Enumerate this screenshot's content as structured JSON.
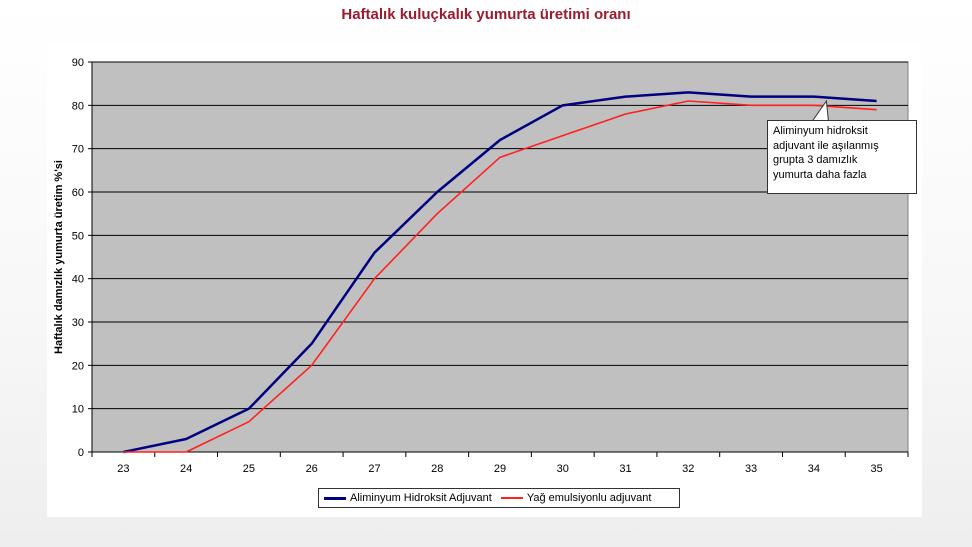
{
  "chart_data": {
    "type": "line",
    "title": "Haftalık kuluçkalık yumurta üretimi oranı",
    "xlabel": "",
    "ylabel": "Haftalık damızlık yumurta üretim %'si",
    "x": [
      23,
      24,
      25,
      26,
      27,
      28,
      29,
      30,
      31,
      32,
      33,
      34,
      35
    ],
    "xlim": [
      22.5,
      35.5
    ],
    "ylim": [
      0,
      90
    ],
    "yticks": [
      0,
      10,
      20,
      30,
      40,
      50,
      60,
      70,
      80,
      90
    ],
    "grid": true,
    "legend_position": "bottom",
    "series": [
      {
        "name": "Aliminyum Hidroksit Adjuvant",
        "color": "#000080",
        "values": [
          0,
          3,
          10,
          25,
          46,
          60,
          72,
          80,
          82,
          83,
          82,
          82,
          81
        ]
      },
      {
        "name": "Yağ emulsiyonlu adjuvant",
        "color": "#ff2020",
        "values": [
          0,
          0,
          7,
          20,
          40,
          55,
          68,
          73,
          78,
          81,
          80,
          80,
          79
        ]
      }
    ],
    "annotation": {
      "lines": [
        "Aliminyum hidroksit",
        "adjuvant ile aşılanmış",
        "grupta 3 damızlık",
        "yumurta daha fazla"
      ],
      "points_to": {
        "x": 34.2,
        "y": 81
      }
    }
  },
  "colors": {
    "plot_background": "#c0c0c0",
    "title": "#9b1b30"
  }
}
